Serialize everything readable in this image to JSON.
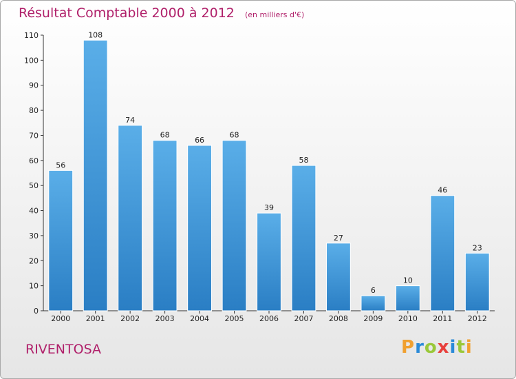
{
  "header": {
    "title": "Résultat Comptable 2000 à 2012",
    "subtitle": "(en milliers d'€)"
  },
  "footer": {
    "commune": "RIVENTOSA",
    "logo": "Proxiti"
  },
  "colors": {
    "title": "#b0206a",
    "bar_light": "#5aaee8",
    "bar_dark": "#2a7ec4",
    "logo_letters": [
      "#f0a030",
      "#2a8ad8",
      "#9ac83a",
      "#e8403c",
      "#2a8ad8",
      "#9ac83a",
      "#f0a030"
    ]
  },
  "chart_data": {
    "type": "bar",
    "categories": [
      "2000",
      "2001",
      "2002",
      "2003",
      "2004",
      "2005",
      "2006",
      "2007",
      "2008",
      "2009",
      "2010",
      "2011",
      "2012"
    ],
    "values": [
      56,
      108,
      74,
      68,
      66,
      68,
      39,
      58,
      27,
      6,
      10,
      46,
      23
    ],
    "yticks": [
      0,
      10,
      20,
      30,
      40,
      50,
      60,
      70,
      80,
      90,
      100,
      110
    ],
    "ylim": [
      0,
      110
    ],
    "grid": false,
    "data_labels": true
  }
}
